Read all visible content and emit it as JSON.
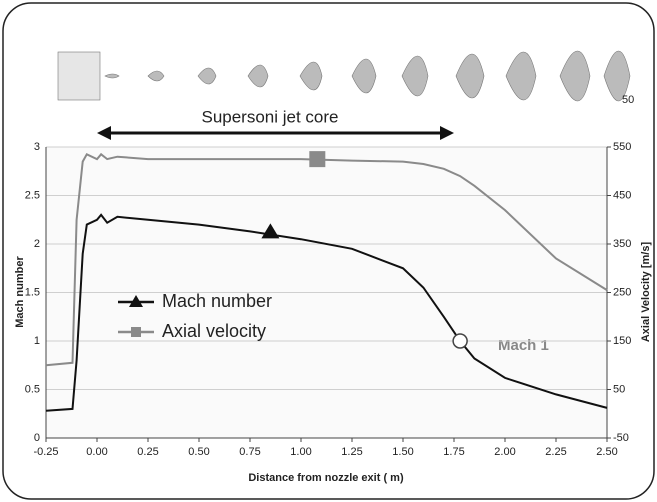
{
  "chart_data": {
    "type": "line",
    "x": [
      -0.25,
      -0.12,
      -0.1,
      -0.07,
      -0.05,
      0,
      0.02,
      0.05,
      0.1,
      0.25,
      0.5,
      0.75,
      1.0,
      1.25,
      1.5,
      1.6,
      1.7,
      1.78,
      1.85,
      2.0,
      2.25,
      2.5
    ],
    "series": [
      {
        "name": "Mach number",
        "color": "#111111",
        "values": [
          0.28,
          0.3,
          0.8,
          1.9,
          2.2,
          2.25,
          2.3,
          2.22,
          2.28,
          2.25,
          2.2,
          2.13,
          2.05,
          1.95,
          1.75,
          1.55,
          1.25,
          1.0,
          0.82,
          0.62,
          0.45,
          0.31
        ]
      },
      {
        "name": "Axial velocity",
        "color": "#8a8a8a",
        "axis": "y2",
        "values": [
          100,
          105,
          400,
          520,
          535,
          525,
          535,
          525,
          530,
          525,
          525,
          525,
          525,
          522,
          520,
          515,
          505,
          490,
          470,
          420,
          320,
          255
        ]
      }
    ],
    "x_label": "Distance from nozzle exit ( m)",
    "y_label": "Mach number",
    "y2_label": "Axial Velocity [m/s]",
    "annotations": [
      "Supersoni jet core",
      "Mach 1",
      "50"
    ],
    "xlim": [
      -0.25,
      2.5
    ],
    "xticks": [
      -0.25,
      {
        "value": 0,
        "label": "0.00"
      },
      0.25,
      {
        "value": 0.5,
        "label": "0.50"
      },
      0.75,
      {
        "value": 1,
        "label": "1.00"
      },
      1.25,
      {
        "value": 1.5,
        "label": "1.50"
      },
      1.75,
      {
        "value": 2,
        "label": "2.00"
      },
      2.25,
      {
        "value": 2.5,
        "label": "2.50"
      }
    ],
    "ylim": [
      0,
      3
    ],
    "yticks": [
      0,
      0.5,
      1,
      1.5,
      2,
      2.5,
      3
    ],
    "y2lim": [
      -50,
      550
    ],
    "y2ticks": [
      -50,
      50,
      150,
      250,
      350,
      450,
      550
    ],
    "grid": true
  }
}
